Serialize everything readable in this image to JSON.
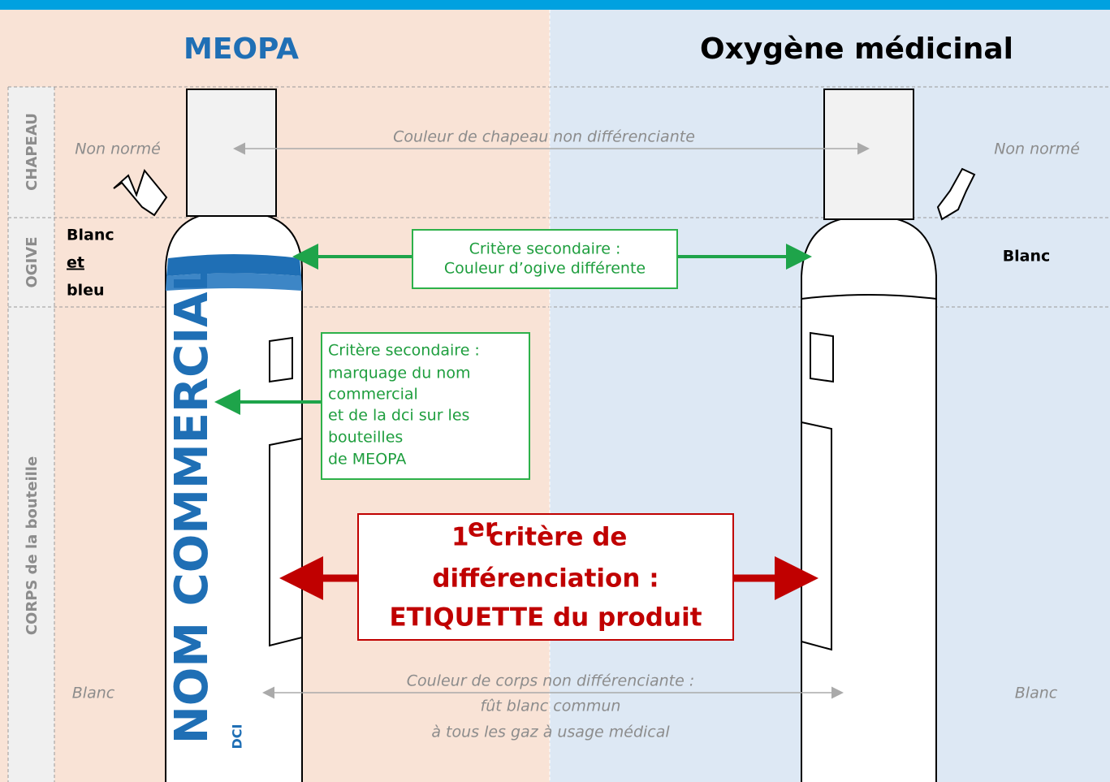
{
  "columns": [
    {
      "title": "MEOPA"
    },
    {
      "title": "Oxygène médicinal"
    }
  ],
  "zones": [
    "CHAPEAU",
    "OGIVE",
    "CORPS de la bouteille"
  ],
  "left_notes": {
    "chapeau": "Non normé",
    "ogive": [
      "Blanc",
      "et",
      "bleu"
    ],
    "corps": "Blanc"
  },
  "right_notes": {
    "chapeau": "Non normé",
    "ogive": "Blanc",
    "corps": "Blanc"
  },
  "center_notes": {
    "chapeau": "Couleur de chapeau non différenciante",
    "corps": [
      "Couleur de corps non différenciante :",
      "fût blanc commun",
      "à tous les gaz à usage médical"
    ]
  },
  "ogive_box": [
    "Critère secondaire :",
    "Couleur d’ogive différente"
  ],
  "marking_box": [
    "Critère secondaire :",
    "marquage du nom",
    "commercial",
    "et de la dci sur les",
    "bouteilles",
    "de MEOPA"
  ],
  "main_box": {
    "number": "1",
    "superscript": "er",
    "lines": [
      "critère de",
      "différenciation :",
      "ETIQUETTE du produit"
    ]
  },
  "bottle_label": {
    "name": "NOM COMMERCIAL",
    "dci": "DCI"
  }
}
